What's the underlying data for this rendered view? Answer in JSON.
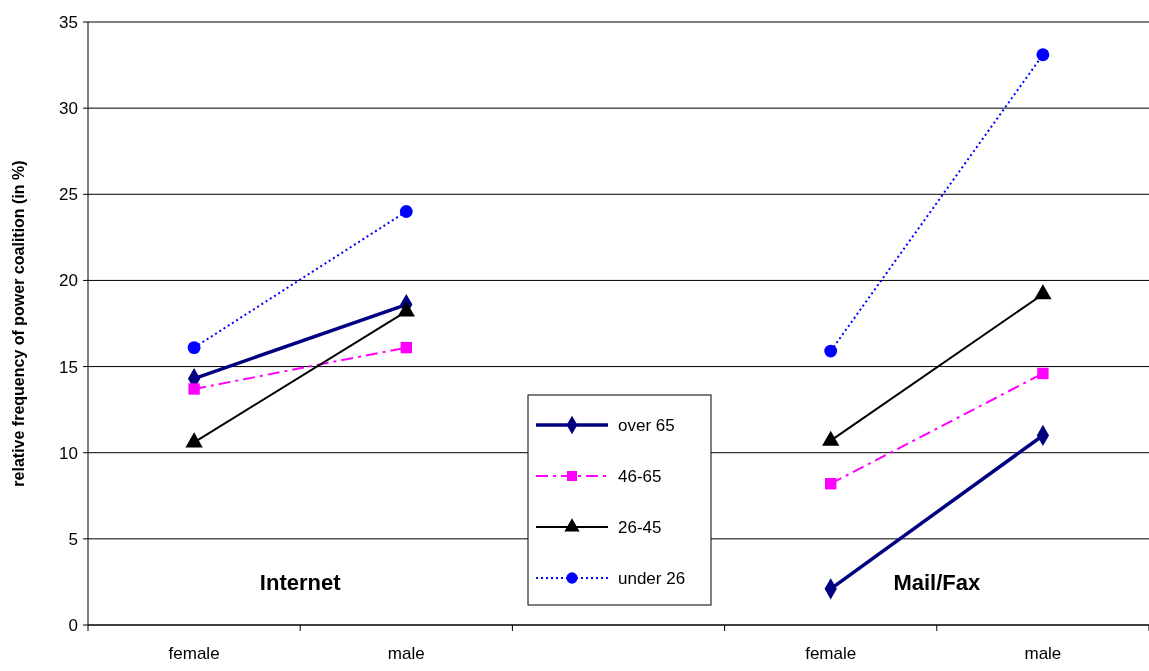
{
  "chart_data": {
    "type": "line",
    "ylabel": "relative frequency of power coalition (in %)",
    "categories": [
      "female",
      "male",
      null,
      "female",
      "male"
    ],
    "ylim": [
      0,
      35
    ],
    "yticks": [
      0,
      5,
      10,
      15,
      20,
      25,
      30,
      35
    ],
    "grid": "y",
    "legend": "bottom",
    "annotations": [
      "Internet",
      "Mail/Fax"
    ],
    "series": [
      {
        "name": "over 65",
        "color": "#000080",
        "marker": "diamond",
        "line_style": "solid",
        "values": [
          14.3,
          18.6,
          null,
          2.1,
          11.0
        ]
      },
      {
        "name": "46-65",
        "color": "#ff00ff",
        "marker": "square",
        "line_style": "dashed",
        "values": [
          13.7,
          16.1,
          null,
          8.2,
          14.6
        ]
      },
      {
        "name": "26-45",
        "color": "#000000",
        "marker": "triangle",
        "line_style": "solid",
        "values": [
          10.6,
          18.2,
          null,
          10.7,
          19.2
        ]
      },
      {
        "name": "under 26",
        "color": "#0000ff",
        "marker": "circle",
        "line_style": "dotted",
        "values": [
          16.1,
          24.0,
          null,
          15.9,
          33.1
        ]
      }
    ]
  }
}
